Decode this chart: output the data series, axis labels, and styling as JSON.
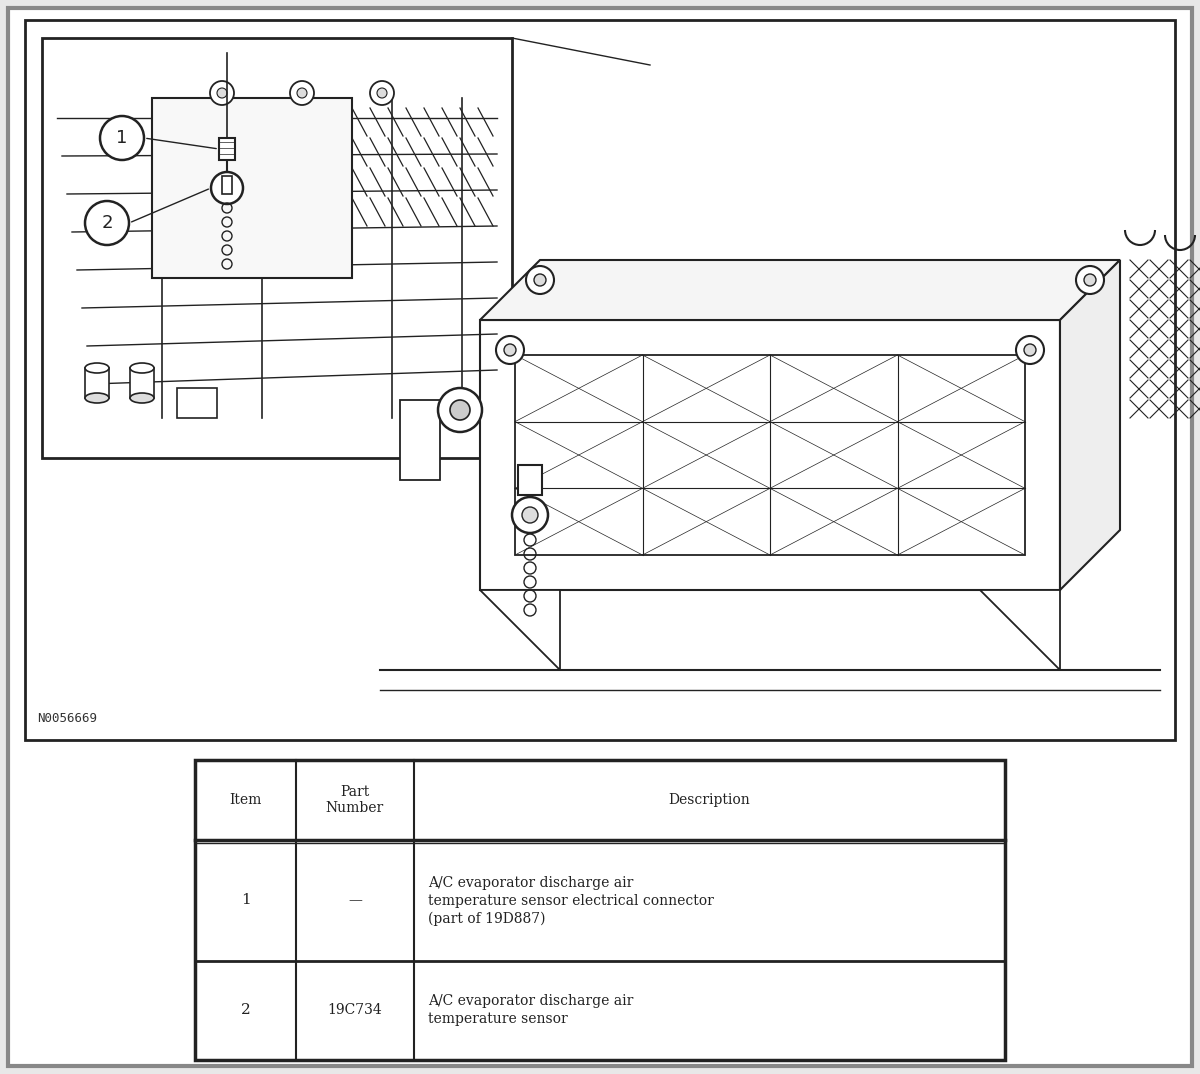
{
  "bg_color": "#e8e8e8",
  "page_bg": "#ffffff",
  "border_color_outer": "#888888",
  "border_color_inner": "#222222",
  "line_color": "#222222",
  "watermark_text": "N0056669",
  "table_headers": [
    "Item",
    "Part\nNumber",
    "Description"
  ],
  "table_data": [
    [
      "1",
      "—",
      "A/C evaporator discharge air\ntemperature sensor electrical connector\n(part of 19D887)"
    ],
    [
      "2",
      "19C734",
      "A/C evaporator discharge air\ntemperature sensor"
    ]
  ],
  "figure_width": 12.0,
  "figure_height": 10.74,
  "dpi": 100
}
